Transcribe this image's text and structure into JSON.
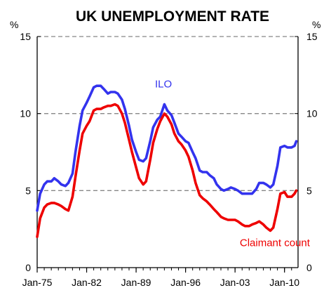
{
  "chart_data": {
    "type": "line",
    "title": "UK UNEMPLOYMENT RATE",
    "y_unit_left": "%",
    "y_unit_right": "%",
    "ylim": [
      0,
      15
    ],
    "yticks": [
      0,
      5,
      10,
      15
    ],
    "x_range": [
      "1975-01",
      "2011-12"
    ],
    "xticks": [
      {
        "date": "1975-01",
        "label": "Jan-75"
      },
      {
        "date": "1982-01",
        "label": "Jan-82"
      },
      {
        "date": "1989-01",
        "label": "Jan-89"
      },
      {
        "date": "1996-01",
        "label": "Jan-96"
      },
      {
        "date": "2003-01",
        "label": "Jan-03"
      },
      {
        "date": "2010-01",
        "label": "Jan-10"
      }
    ],
    "gridlines": [
      5,
      10,
      15
    ],
    "grid_style": "dashed",
    "series": [
      {
        "name": "ILO",
        "color": "#3333ee",
        "points": [
          [
            "1975-01",
            3.7
          ],
          [
            "1975-06",
            4.8
          ],
          [
            "1976-01",
            5.4
          ],
          [
            "1976-06",
            5.6
          ],
          [
            "1977-01",
            5.6
          ],
          [
            "1977-06",
            5.8
          ],
          [
            "1978-01",
            5.6
          ],
          [
            "1978-06",
            5.4
          ],
          [
            "1979-01",
            5.3
          ],
          [
            "1979-06",
            5.5
          ],
          [
            "1980-01",
            6.1
          ],
          [
            "1980-06",
            7.5
          ],
          [
            "1981-01",
            9.2
          ],
          [
            "1981-06",
            10.2
          ],
          [
            "1982-01",
            10.7
          ],
          [
            "1982-06",
            11.1
          ],
          [
            "1983-01",
            11.7
          ],
          [
            "1983-06",
            11.8
          ],
          [
            "1984-01",
            11.8
          ],
          [
            "1984-06",
            11.6
          ],
          [
            "1985-01",
            11.3
          ],
          [
            "1985-06",
            11.4
          ],
          [
            "1986-01",
            11.4
          ],
          [
            "1986-06",
            11.3
          ],
          [
            "1987-01",
            10.9
          ],
          [
            "1987-06",
            10.3
          ],
          [
            "1988-01",
            9.2
          ],
          [
            "1988-06",
            8.3
          ],
          [
            "1989-01",
            7.5
          ],
          [
            "1989-06",
            7.0
          ],
          [
            "1990-01",
            6.9
          ],
          [
            "1990-06",
            7.1
          ],
          [
            "1991-01",
            8.2
          ],
          [
            "1991-06",
            9.1
          ],
          [
            "1992-01",
            9.6
          ],
          [
            "1992-06",
            9.8
          ],
          [
            "1993-01",
            10.6
          ],
          [
            "1993-06",
            10.2
          ],
          [
            "1994-01",
            9.9
          ],
          [
            "1994-06",
            9.4
          ],
          [
            "1995-01",
            8.7
          ],
          [
            "1995-06",
            8.5
          ],
          [
            "1996-01",
            8.2
          ],
          [
            "1996-06",
            8.1
          ],
          [
            "1997-01",
            7.5
          ],
          [
            "1997-06",
            7.1
          ],
          [
            "1998-01",
            6.3
          ],
          [
            "1998-06",
            6.2
          ],
          [
            "1999-01",
            6.2
          ],
          [
            "1999-06",
            6.0
          ],
          [
            "2000-01",
            5.8
          ],
          [
            "2000-06",
            5.4
          ],
          [
            "2001-01",
            5.1
          ],
          [
            "2001-06",
            5.0
          ],
          [
            "2002-01",
            5.1
          ],
          [
            "2002-06",
            5.2
          ],
          [
            "2003-01",
            5.1
          ],
          [
            "2003-06",
            5.0
          ],
          [
            "2004-01",
            4.8
          ],
          [
            "2004-06",
            4.8
          ],
          [
            "2005-01",
            4.8
          ],
          [
            "2005-06",
            4.8
          ],
          [
            "2006-01",
            5.1
          ],
          [
            "2006-06",
            5.5
          ],
          [
            "2007-01",
            5.5
          ],
          [
            "2007-06",
            5.4
          ],
          [
            "2008-01",
            5.2
          ],
          [
            "2008-06",
            5.4
          ],
          [
            "2009-01",
            6.6
          ],
          [
            "2009-06",
            7.8
          ],
          [
            "2010-01",
            7.9
          ],
          [
            "2010-06",
            7.8
          ],
          [
            "2011-01",
            7.8
          ],
          [
            "2011-06",
            7.9
          ],
          [
            "2011-09",
            8.2
          ]
        ]
      },
      {
        "name": "Claimant count",
        "color": "#ee0000",
        "points": [
          [
            "1975-01",
            2.0
          ],
          [
            "1975-06",
            3.2
          ],
          [
            "1976-01",
            3.9
          ],
          [
            "1976-06",
            4.1
          ],
          [
            "1977-01",
            4.2
          ],
          [
            "1977-06",
            4.2
          ],
          [
            "1978-01",
            4.1
          ],
          [
            "1978-06",
            4.0
          ],
          [
            "1979-01",
            3.8
          ],
          [
            "1979-06",
            3.7
          ],
          [
            "1980-01",
            4.6
          ],
          [
            "1980-06",
            5.9
          ],
          [
            "1981-01",
            7.6
          ],
          [
            "1981-06",
            8.7
          ],
          [
            "1982-01",
            9.2
          ],
          [
            "1982-06",
            9.5
          ],
          [
            "1983-01",
            10.2
          ],
          [
            "1983-06",
            10.3
          ],
          [
            "1984-01",
            10.3
          ],
          [
            "1984-06",
            10.4
          ],
          [
            "1985-01",
            10.5
          ],
          [
            "1985-06",
            10.5
          ],
          [
            "1986-01",
            10.6
          ],
          [
            "1986-06",
            10.5
          ],
          [
            "1987-01",
            10.0
          ],
          [
            "1987-06",
            9.4
          ],
          [
            "1988-01",
            8.3
          ],
          [
            "1988-06",
            7.5
          ],
          [
            "1989-01",
            6.5
          ],
          [
            "1989-06",
            5.8
          ],
          [
            "1990-01",
            5.4
          ],
          [
            "1990-06",
            5.6
          ],
          [
            "1991-01",
            7.0
          ],
          [
            "1991-06",
            8.1
          ],
          [
            "1992-01",
            9.0
          ],
          [
            "1992-06",
            9.5
          ],
          [
            "1993-01",
            10.0
          ],
          [
            "1993-06",
            9.8
          ],
          [
            "1994-01",
            9.3
          ],
          [
            "1994-06",
            8.7
          ],
          [
            "1995-01",
            8.2
          ],
          [
            "1995-06",
            8.0
          ],
          [
            "1996-01",
            7.6
          ],
          [
            "1996-06",
            7.2
          ],
          [
            "1997-01",
            6.3
          ],
          [
            "1997-06",
            5.5
          ],
          [
            "1998-01",
            4.7
          ],
          [
            "1998-06",
            4.5
          ],
          [
            "1999-01",
            4.3
          ],
          [
            "1999-06",
            4.1
          ],
          [
            "2000-01",
            3.8
          ],
          [
            "2000-06",
            3.6
          ],
          [
            "2001-01",
            3.3
          ],
          [
            "2001-06",
            3.2
          ],
          [
            "2002-01",
            3.1
          ],
          [
            "2002-06",
            3.1
          ],
          [
            "2003-01",
            3.1
          ],
          [
            "2003-06",
            3.0
          ],
          [
            "2004-01",
            2.8
          ],
          [
            "2004-06",
            2.7
          ],
          [
            "2005-01",
            2.7
          ],
          [
            "2005-06",
            2.8
          ],
          [
            "2006-01",
            2.9
          ],
          [
            "2006-06",
            3.0
          ],
          [
            "2007-01",
            2.8
          ],
          [
            "2007-06",
            2.6
          ],
          [
            "2008-01",
            2.4
          ],
          [
            "2008-06",
            2.6
          ],
          [
            "2009-01",
            3.8
          ],
          [
            "2009-06",
            4.8
          ],
          [
            "2010-01",
            4.9
          ],
          [
            "2010-06",
            4.6
          ],
          [
            "2011-01",
            4.6
          ],
          [
            "2011-06",
            4.8
          ],
          [
            "2011-09",
            5.0
          ]
        ]
      }
    ],
    "series_labels": [
      {
        "text": "ILO",
        "color": "#3333ee",
        "anchor_date": "1991-09",
        "anchor_value": 11.7
      },
      {
        "text": "Claimant count",
        "color": "#ee0000",
        "anchor_date": "2003-09",
        "anchor_value": 1.4
      }
    ]
  }
}
